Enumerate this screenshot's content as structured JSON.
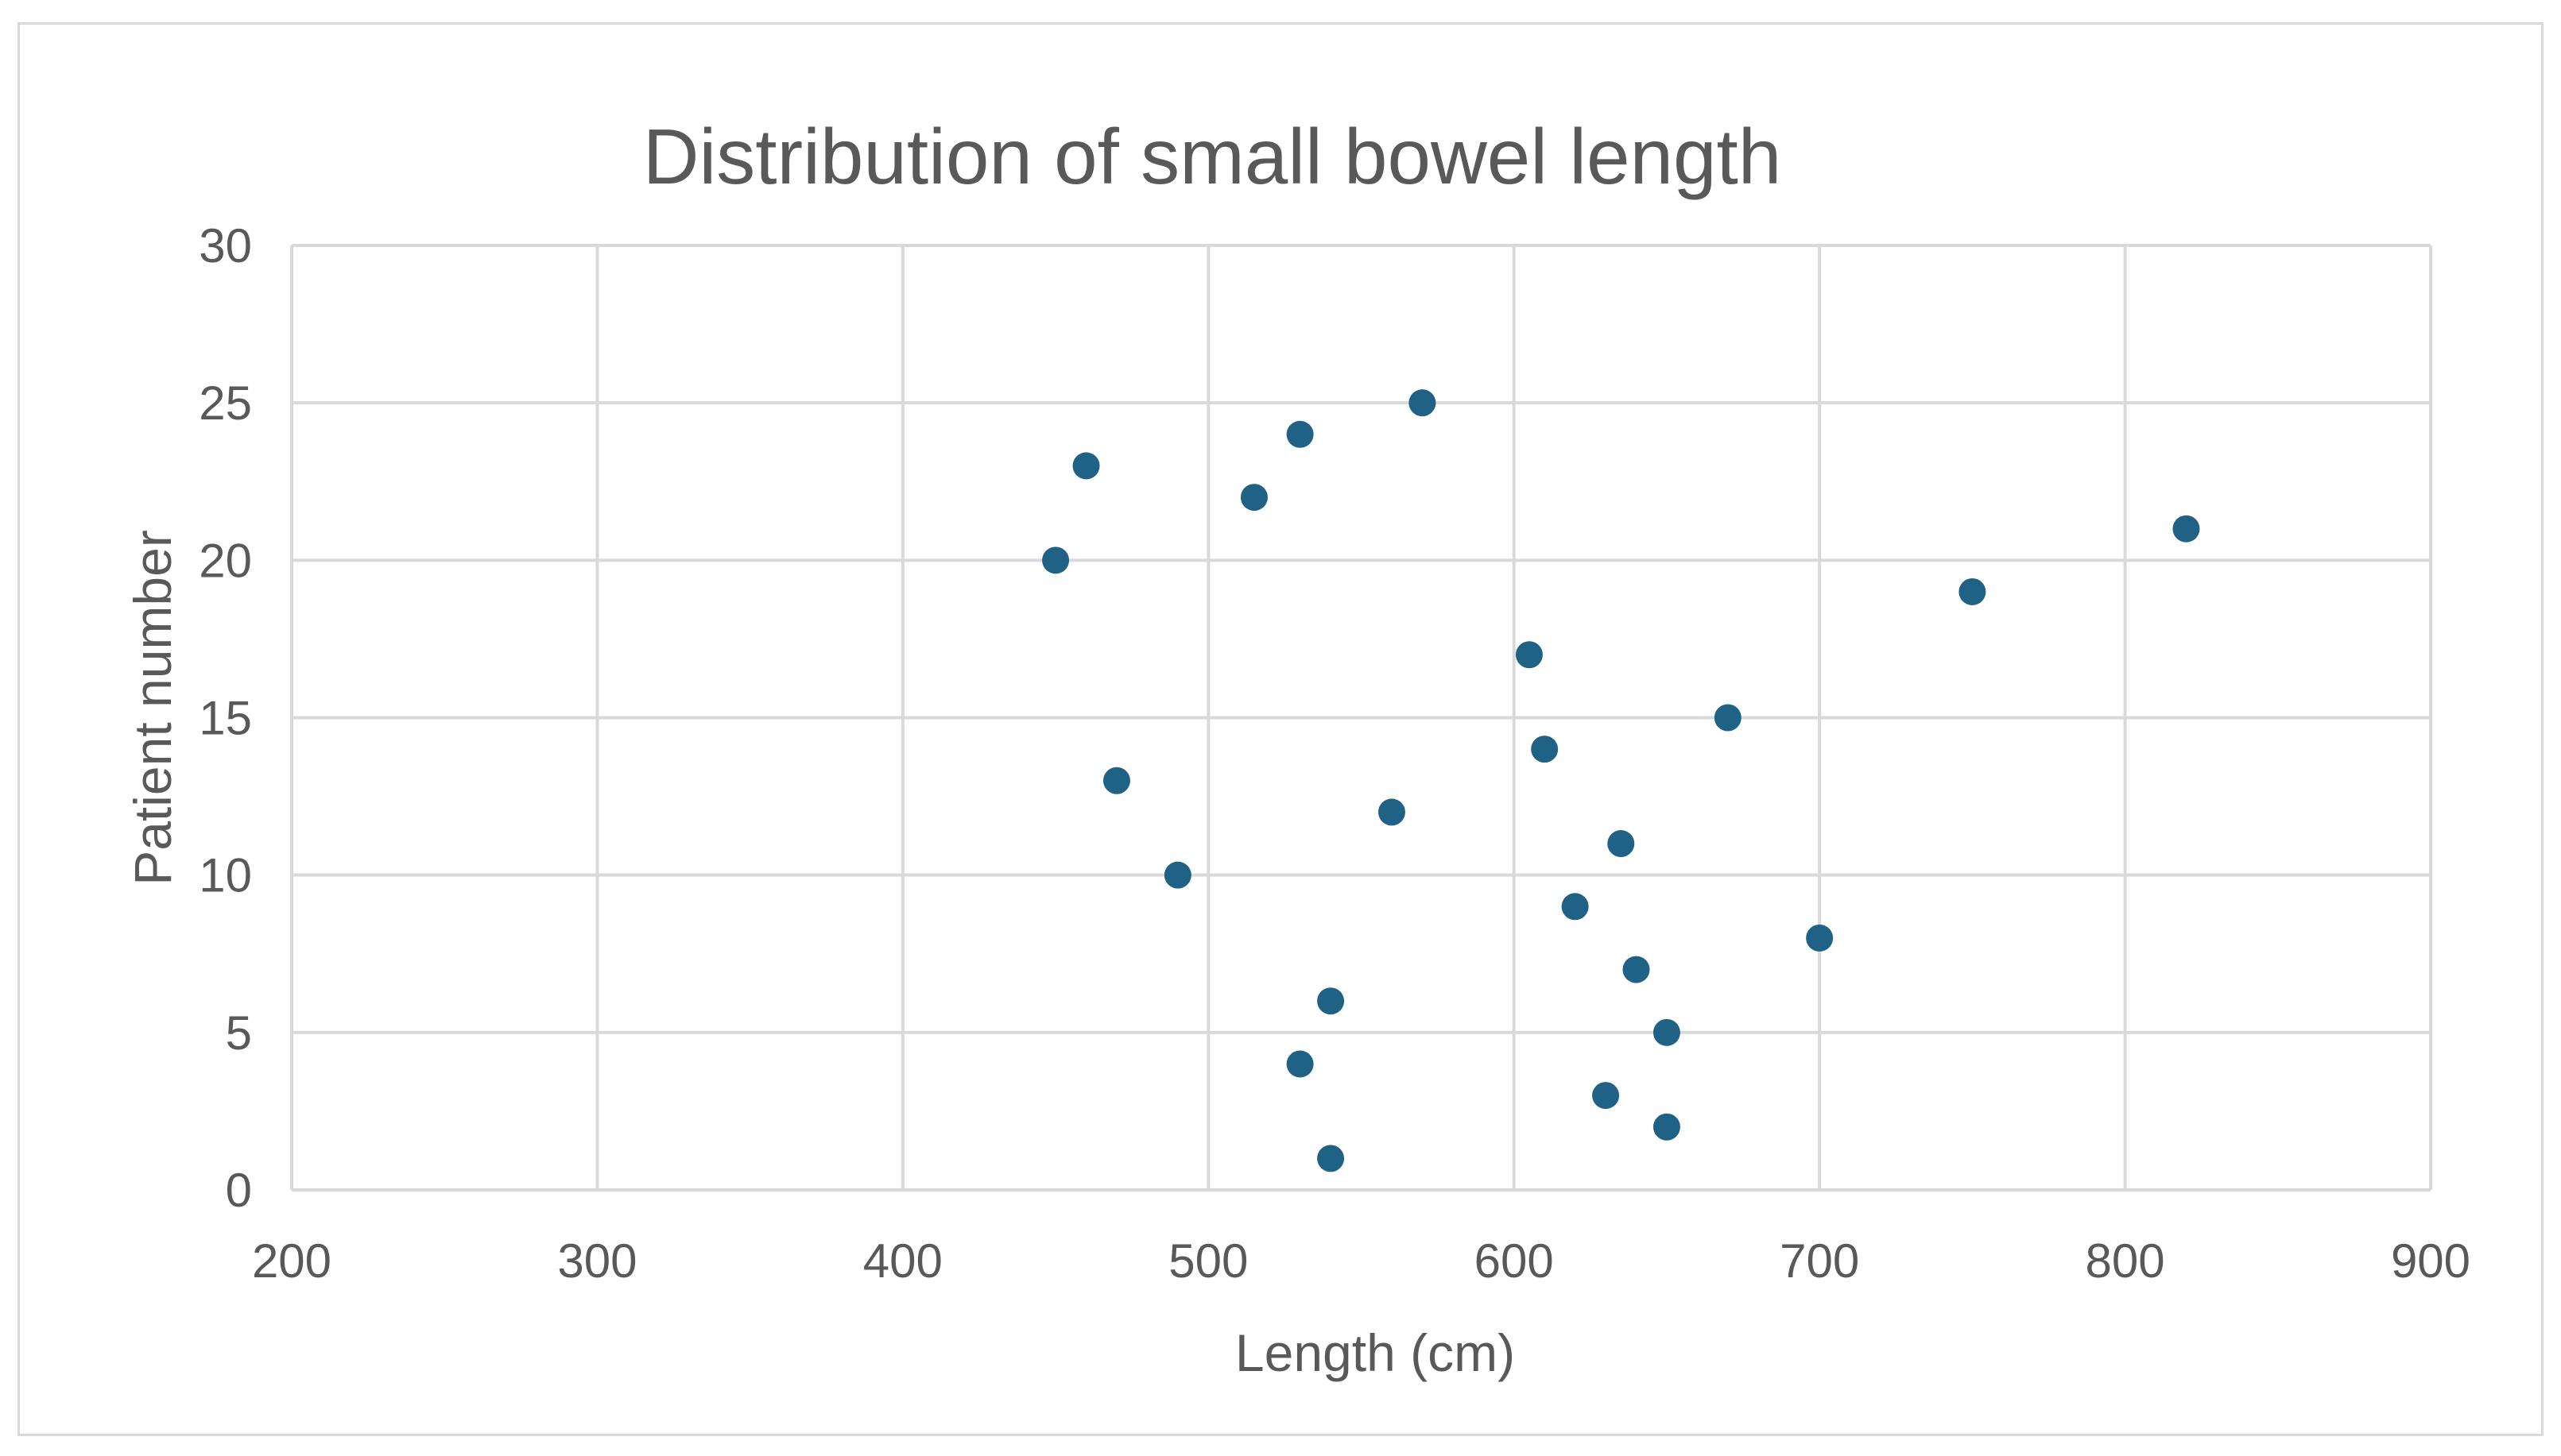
{
  "chart_data": {
    "type": "scatter",
    "title": "Distribution of small bowel length",
    "xlabel": "Length (cm)",
    "ylabel": "Patient number",
    "xlim": [
      200,
      900
    ],
    "ylim": [
      0,
      30
    ],
    "x_ticks": [
      "200",
      "300",
      "400",
      "500",
      "600",
      "700",
      "800",
      "900"
    ],
    "y_ticks": [
      "0",
      "5",
      "10",
      "15",
      "20",
      "25",
      "30"
    ],
    "grid": true,
    "marker_color": "#1f6285",
    "gridline_color": "#d9d9d9",
    "text_color": "#595959",
    "points": [
      {
        "x": 540,
        "y": 1
      },
      {
        "x": 650,
        "y": 2
      },
      {
        "x": 630,
        "y": 3
      },
      {
        "x": 530,
        "y": 4
      },
      {
        "x": 650,
        "y": 5
      },
      {
        "x": 540,
        "y": 6
      },
      {
        "x": 640,
        "y": 7
      },
      {
        "x": 700,
        "y": 8
      },
      {
        "x": 620,
        "y": 9
      },
      {
        "x": 490,
        "y": 10
      },
      {
        "x": 635,
        "y": 11
      },
      {
        "x": 560,
        "y": 12
      },
      {
        "x": 470,
        "y": 13
      },
      {
        "x": 610,
        "y": 14
      },
      {
        "x": 670,
        "y": 15
      },
      {
        "x": 605,
        "y": 17
      },
      {
        "x": 750,
        "y": 19
      },
      {
        "x": 450,
        "y": 20
      },
      {
        "x": 820,
        "y": 21
      },
      {
        "x": 515,
        "y": 22
      },
      {
        "x": 460,
        "y": 23
      },
      {
        "x": 530,
        "y": 24
      },
      {
        "x": 570,
        "y": 25
      }
    ]
  }
}
